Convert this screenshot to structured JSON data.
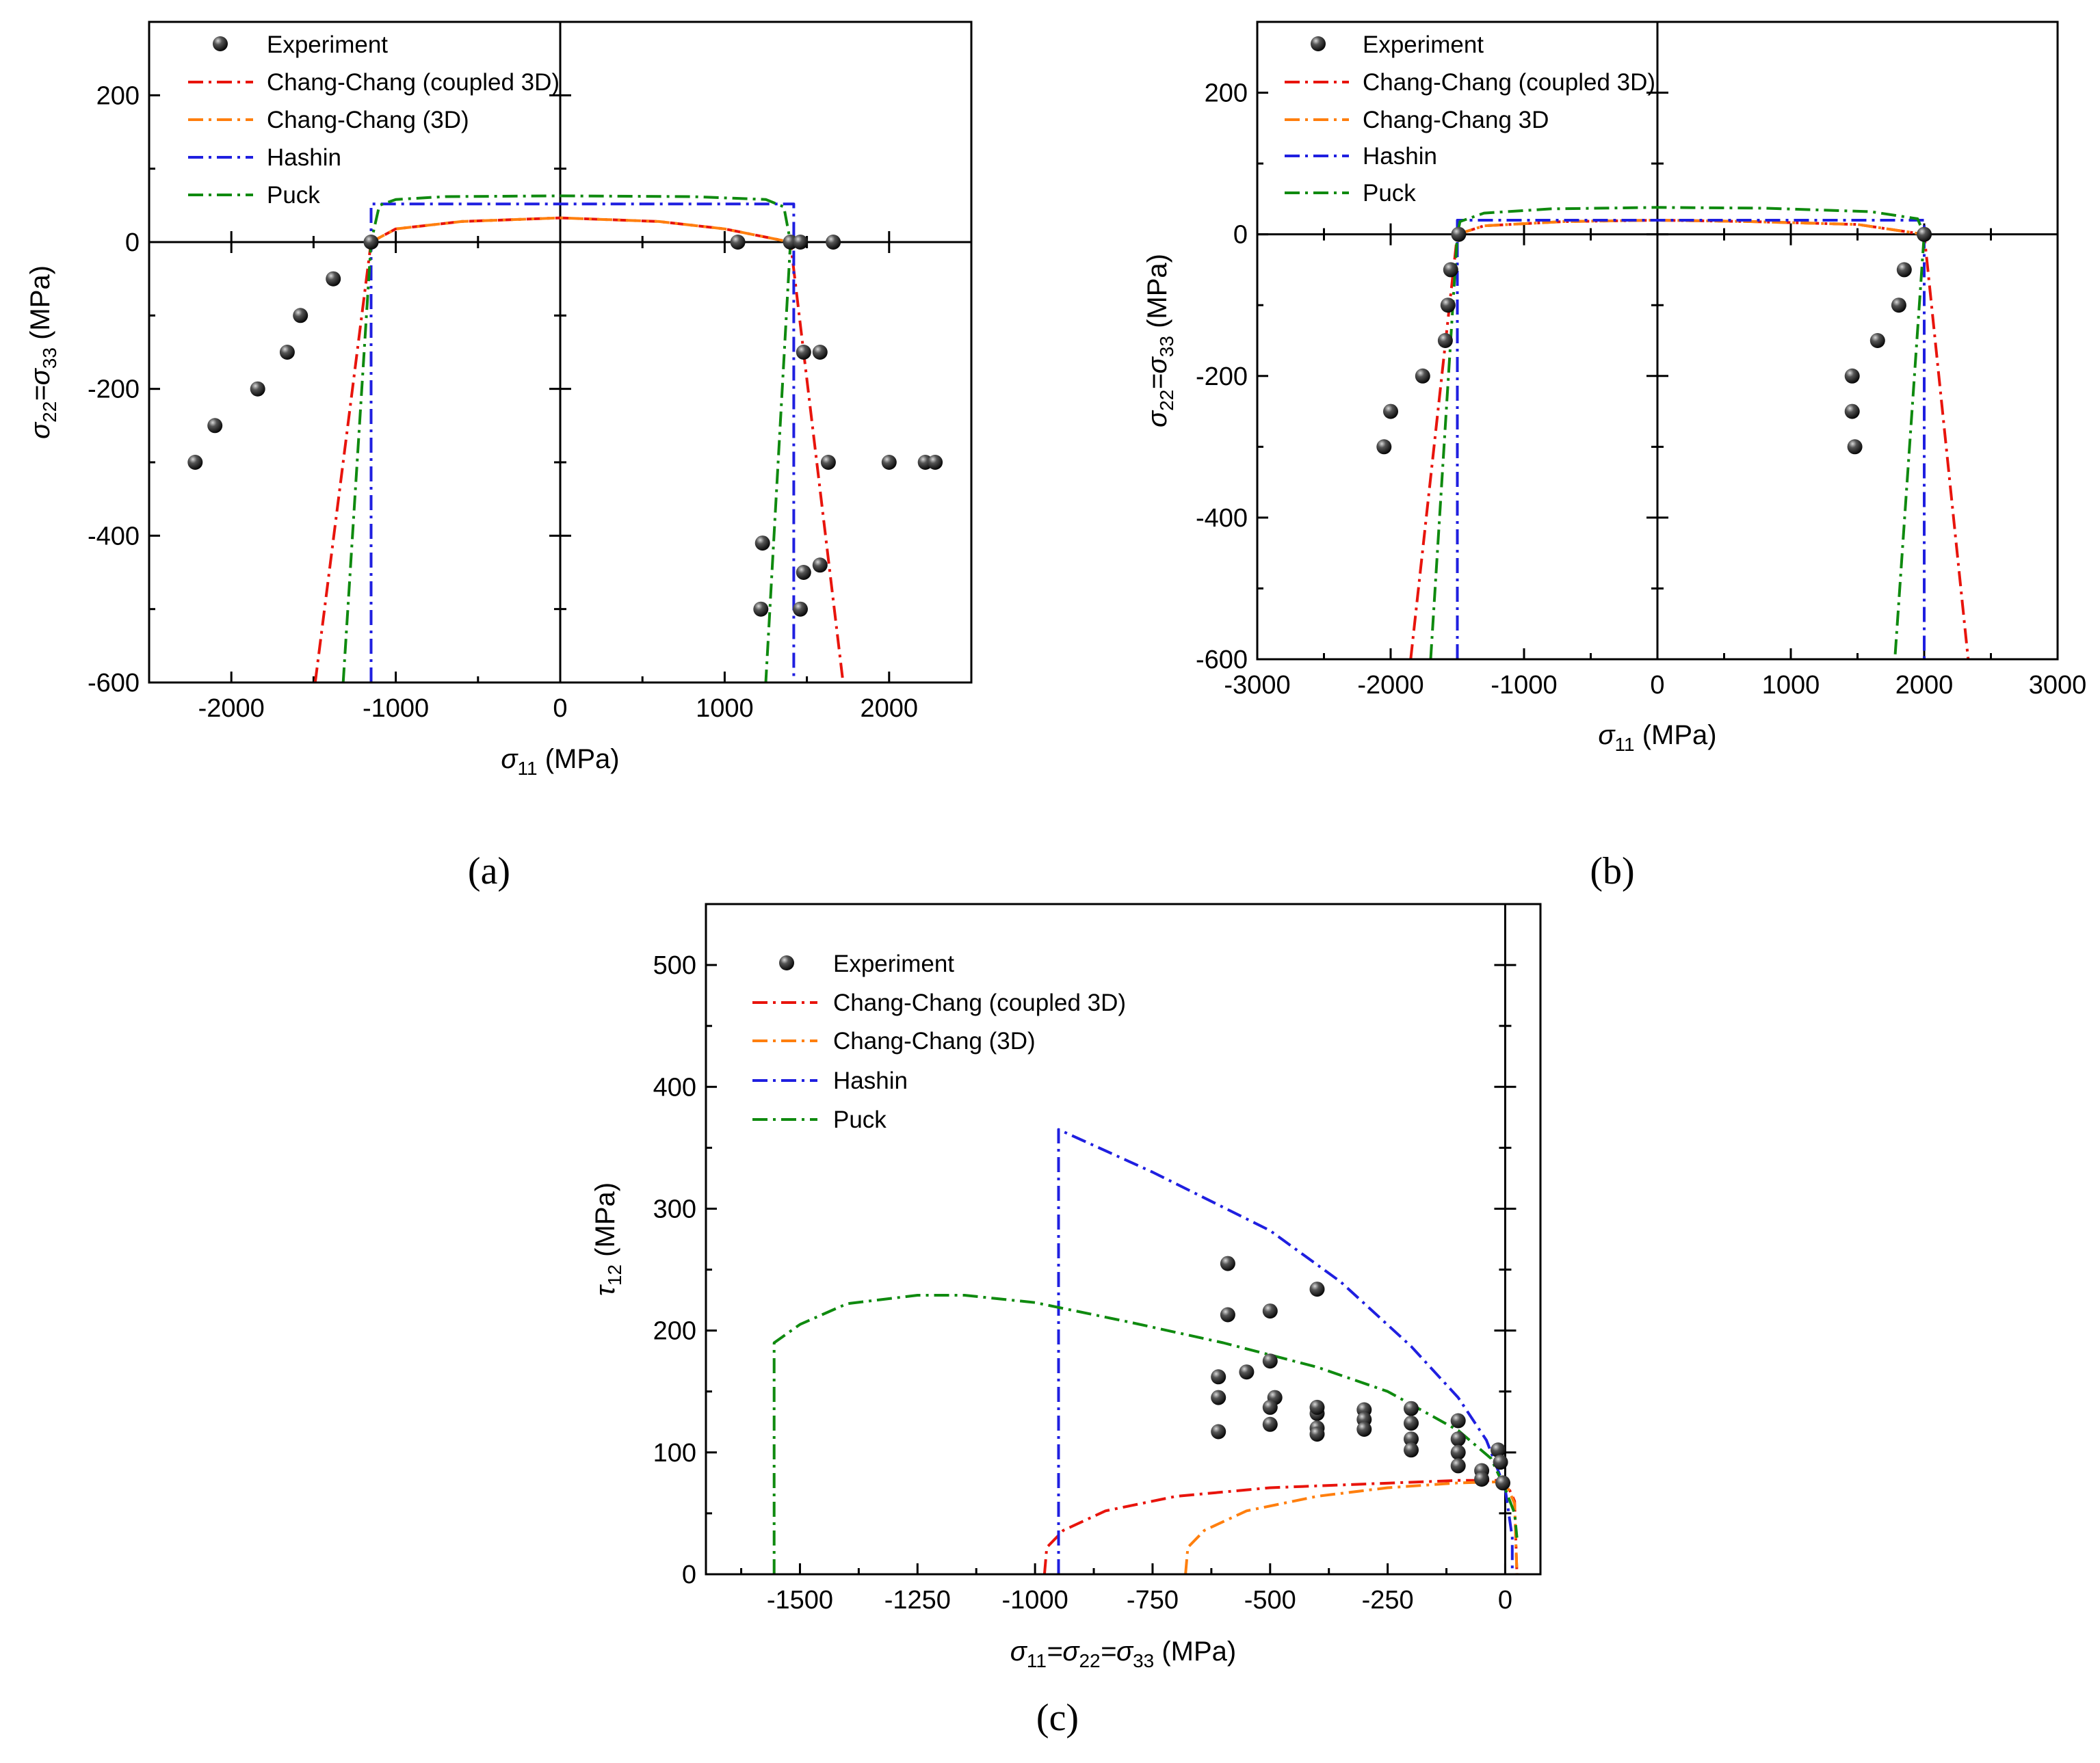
{
  "colors": {
    "experiment": "#111111",
    "chang_coupled": "#e8140c",
    "chang_3d": "#ff7f0e",
    "hashin": "#1f1fe0",
    "puck": "#0f8a0f"
  },
  "chart_data": [
    {
      "type": "scatter",
      "panel_label": "(a)",
      "xlabel_main": "σ",
      "xlabel_sub": "11",
      "xlabel_unit": " (MPa)",
      "ylabel": {
        "p1": "σ",
        "s1": "22",
        "eq": "=σ",
        "s2": "33",
        "unit": " (MPa)"
      },
      "xlim": [
        -2500,
        2500
      ],
      "ylim": [
        -600,
        300
      ],
      "xticks": [
        -2000,
        -1000,
        0,
        1000,
        2000
      ],
      "xtick_labels": [
        "-2000",
        "-1000",
        "0",
        "1000",
        "2000"
      ],
      "yticks": [
        -600,
        -400,
        -200,
        0,
        200
      ],
      "ytick_labels": [
        "-600",
        "-400",
        "-200",
        "0",
        "200"
      ],
      "minor_x": [
        -1500,
        -500,
        500,
        1500
      ],
      "minor_y": [
        -500,
        -300,
        -100,
        100
      ],
      "legend": [
        "Experiment",
        "Chang-Chang (coupled 3D)",
        "Chang-Chang (3D)",
        "Hashin",
        "Puck"
      ],
      "experiment": [
        [
          -2220,
          -300
        ],
        [
          -2100,
          -250
        ],
        [
          -1840,
          -200
        ],
        [
          -1660,
          -150
        ],
        [
          -1580,
          -100
        ],
        [
          -1380,
          -50
        ],
        [
          -1150,
          0
        ],
        [
          1080,
          0
        ],
        [
          1400,
          0
        ],
        [
          1460,
          0
        ],
        [
          1660,
          0
        ],
        [
          1230,
          -410
        ],
        [
          1480,
          -450
        ],
        [
          1580,
          -440
        ],
        [
          1480,
          -150
        ],
        [
          1580,
          -150
        ],
        [
          1630,
          -300
        ],
        [
          2000,
          -300
        ],
        [
          2220,
          -300
        ],
        [
          2280,
          -300
        ],
        [
          1220,
          -500
        ],
        [
          1460,
          -500
        ]
      ],
      "series": [
        {
          "name": "Chang-Chang (coupled 3D)",
          "color_key": "chang_coupled",
          "points": [
            [
              -1490,
              -600
            ],
            [
              -1150,
              0
            ],
            [
              -1000,
              18
            ],
            [
              -600,
              28
            ],
            [
              0,
              33
            ],
            [
              600,
              28
            ],
            [
              1000,
              18
            ],
            [
              1400,
              0
            ],
            [
              1720,
              -600
            ]
          ]
        },
        {
          "name": "Chang-Chang (3D)",
          "color_key": "chang_3d",
          "points": [
            [
              -1150,
              0
            ],
            [
              -1000,
              18
            ],
            [
              -600,
              28
            ],
            [
              0,
              33
            ],
            [
              600,
              28
            ],
            [
              1000,
              18
            ],
            [
              1400,
              0
            ]
          ]
        },
        {
          "name": "Hashin",
          "color_key": "hashin",
          "points": [
            [
              -1150,
              -600
            ],
            [
              -1150,
              52
            ],
            [
              1420,
              52
            ],
            [
              1420,
              -600
            ]
          ]
        },
        {
          "name": "Puck",
          "color_key": "puck",
          "points": [
            [
              -1320,
              -600
            ],
            [
              -1150,
              0
            ],
            [
              -1100,
              50
            ],
            [
              -1000,
              58
            ],
            [
              -700,
              62
            ],
            [
              0,
              63
            ],
            [
              800,
              62
            ],
            [
              1250,
              58
            ],
            [
              1360,
              48
            ],
            [
              1400,
              0
            ],
            [
              1250,
              -600
            ]
          ]
        }
      ]
    },
    {
      "type": "scatter",
      "panel_label": "(b)",
      "xlabel_main": "σ",
      "xlabel_sub": "11",
      "xlabel_unit": " (MPa)",
      "ylabel": {
        "p1": "σ",
        "s1": "22",
        "eq": "=σ",
        "s2": "33",
        "unit": " (MPa)"
      },
      "xlim": [
        -3000,
        3000
      ],
      "ylim": [
        -600,
        300
      ],
      "xticks": [
        -3000,
        -2000,
        -1000,
        0,
        1000,
        2000,
        3000
      ],
      "xtick_labels": [
        "-3000",
        "-2000",
        "-1000",
        "0",
        "1000",
        "2000",
        "3000"
      ],
      "yticks": [
        -600,
        -400,
        -200,
        0,
        200
      ],
      "ytick_labels": [
        "-600",
        "-400",
        "-200",
        "0",
        "200"
      ],
      "minor_x": [
        -2500,
        -1500,
        -500,
        500,
        1500,
        2500
      ],
      "minor_y": [
        -500,
        -300,
        -100,
        100
      ],
      "legend": [
        "Experiment",
        "Chang-Chang (coupled 3D)",
        "Chang-Chang 3D",
        "Hashin",
        "Puck"
      ],
      "experiment": [
        [
          -2050,
          -300
        ],
        [
          -2000,
          -250
        ],
        [
          -1760,
          -200
        ],
        [
          -1590,
          -150
        ],
        [
          -1570,
          -100
        ],
        [
          -1550,
          -50
        ],
        [
          -1490,
          0
        ],
        [
          2000,
          0
        ],
        [
          1480,
          -300
        ],
        [
          1460,
          -250
        ],
        [
          1460,
          -200
        ],
        [
          1650,
          -150
        ],
        [
          1810,
          -100
        ],
        [
          1850,
          -50
        ]
      ],
      "series": [
        {
          "name": "Chang-Chang (coupled 3D)",
          "color_key": "chang_coupled",
          "points": [
            [
              -1850,
              -600
            ],
            [
              -1500,
              0
            ],
            [
              -1300,
              12
            ],
            [
              -700,
              18
            ],
            [
              0,
              20
            ],
            [
              700,
              18
            ],
            [
              1500,
              14
            ],
            [
              2000,
              0
            ],
            [
              2330,
              -600
            ]
          ]
        },
        {
          "name": "Chang-Chang 3D",
          "color_key": "chang_3d",
          "points": [
            [
              -1500,
              0
            ],
            [
              -1300,
              12
            ],
            [
              -700,
              18
            ],
            [
              0,
              20
            ],
            [
              700,
              18
            ],
            [
              1500,
              14
            ],
            [
              2000,
              0
            ]
          ]
        },
        {
          "name": "Hashin",
          "color_key": "hashin",
          "points": [
            [
              -1500,
              -600
            ],
            [
              -1500,
              20
            ],
            [
              2000,
              20
            ],
            [
              2000,
              -600
            ]
          ]
        },
        {
          "name": "Puck",
          "color_key": "puck",
          "points": [
            [
              -1700,
              -600
            ],
            [
              -1500,
              0
            ],
            [
              -1480,
              18
            ],
            [
              -1300,
              30
            ],
            [
              -800,
              36
            ],
            [
              0,
              38
            ],
            [
              800,
              37
            ],
            [
              1600,
              32
            ],
            [
              1950,
              22
            ],
            [
              2000,
              0
            ],
            [
              1780,
              -600
            ]
          ]
        }
      ]
    },
    {
      "type": "scatter",
      "panel_label": "(c)",
      "xlabel": {
        "p1": "σ",
        "s1": "11",
        "e1": "=σ",
        "s2": "22",
        "e2": "=σ",
        "s3": "33",
        "unit": " (MPa)"
      },
      "ylabel": {
        "p1": "τ",
        "s1": "12",
        "unit": " (MPa)"
      },
      "xlim": [
        -1700,
        75
      ],
      "ylim": [
        0,
        550
      ],
      "xticks": [
        -1500,
        -1250,
        -1000,
        -750,
        -500,
        -250,
        0
      ],
      "xtick_labels": [
        "-1500",
        "-1250",
        "-1000",
        "-750",
        "-500",
        "-250",
        "0"
      ],
      "yticks": [
        0,
        100,
        200,
        300,
        400,
        500
      ],
      "ytick_labels": [
        "0",
        "100",
        "200",
        "300",
        "400",
        "500"
      ],
      "minor_x": [
        -1625,
        -1375,
        -1125,
        -875,
        -625,
        -375,
        -125
      ],
      "minor_y": [
        50,
        150,
        250,
        350,
        450
      ],
      "legend": [
        "Experiment",
        "Chang-Chang (coupled 3D)",
        "Chang-Chang (3D)",
        "Hashin",
        "Puck"
      ],
      "experiment": [
        [
          -590,
          255
        ],
        [
          -590,
          213
        ],
        [
          -500,
          216
        ],
        [
          -400,
          234
        ],
        [
          -500,
          175
        ],
        [
          -610,
          162
        ],
        [
          -550,
          166
        ],
        [
          -610,
          145
        ],
        [
          -490,
          145
        ],
        [
          -500,
          137
        ],
        [
          -400,
          132
        ],
        [
          -400,
          137
        ],
        [
          -610,
          117
        ],
        [
          -500,
          123
        ],
        [
          -400,
          120
        ],
        [
          -400,
          115
        ],
        [
          -300,
          135
        ],
        [
          -300,
          127
        ],
        [
          -300,
          119
        ],
        [
          -200,
          136
        ],
        [
          -200,
          124
        ],
        [
          -200,
          111
        ],
        [
          -200,
          102
        ],
        [
          -100,
          126
        ],
        [
          -100,
          111
        ],
        [
          -100,
          100
        ],
        [
          -100,
          89
        ],
        [
          -50,
          85
        ],
        [
          -50,
          78
        ],
        [
          -15,
          102
        ],
        [
          -10,
          92
        ],
        [
          -5,
          75
        ]
      ],
      "series": [
        {
          "name": "Chang-Chang (coupled 3D)",
          "color_key": "chang_coupled",
          "points": [
            [
              -980,
              0
            ],
            [
              -975,
              22
            ],
            [
              -940,
              36
            ],
            [
              -850,
              52
            ],
            [
              -700,
              64
            ],
            [
              -500,
              71
            ],
            [
              -300,
              74
            ],
            [
              -100,
              77
            ],
            [
              0,
              77
            ],
            [
              20,
              60
            ],
            [
              25,
              0
            ]
          ]
        },
        {
          "name": "Chang-Chang (3D)",
          "color_key": "chang_3d",
          "points": [
            [
              -680,
              0
            ],
            [
              -675,
              22
            ],
            [
              -640,
              36
            ],
            [
              -550,
              52
            ],
            [
              -400,
              64
            ],
            [
              -250,
              71
            ],
            [
              -100,
              75
            ],
            [
              0,
              76
            ],
            [
              20,
              58
            ],
            [
              25,
              0
            ]
          ]
        },
        {
          "name": "Hashin",
          "color_key": "hashin",
          "points": [
            [
              -950,
              0
            ],
            [
              -950,
              365
            ],
            [
              -750,
              330
            ],
            [
              -500,
              282
            ],
            [
              -350,
              240
            ],
            [
              -200,
              187
            ],
            [
              -100,
              145
            ],
            [
              -40,
              110
            ],
            [
              0,
              70
            ],
            [
              15,
              30
            ],
            [
              15,
              0
            ]
          ]
        },
        {
          "name": "Puck",
          "color_key": "puck",
          "points": [
            [
              -1555,
              0
            ],
            [
              -1555,
              190
            ],
            [
              -1500,
              205
            ],
            [
              -1400,
              222
            ],
            [
              -1250,
              229
            ],
            [
              -1150,
              229
            ],
            [
              -1000,
              223
            ],
            [
              -800,
              207
            ],
            [
              -600,
              190
            ],
            [
              -400,
              170
            ],
            [
              -250,
              150
            ],
            [
              -100,
              118
            ],
            [
              -30,
              95
            ],
            [
              0,
              70
            ],
            [
              20,
              50
            ],
            [
              25,
              30
            ]
          ]
        }
      ]
    }
  ]
}
